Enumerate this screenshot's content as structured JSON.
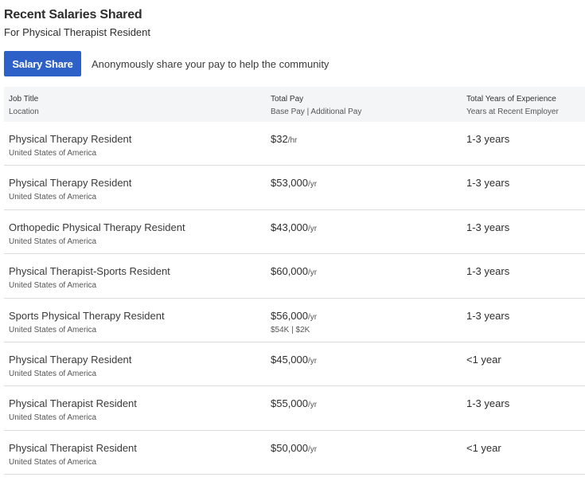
{
  "header": {
    "title": "Recent Salaries Shared",
    "subtitle": "For Physical Therapist Resident"
  },
  "share": {
    "button_label": "Salary Share",
    "description": "Anonymously share your pay to help the community"
  },
  "colors": {
    "accent": "#2e61c8",
    "header_bg": "#f4f5f7"
  },
  "table": {
    "headers": {
      "job_title": "Job Title",
      "location": "Location",
      "total_pay": "Total Pay",
      "pay_breakdown": "Base Pay | Additional Pay",
      "experience": "Total Years of Experience",
      "recent_employer": "Years at Recent Employer"
    },
    "rows": [
      {
        "title": "Physical Therapy Resident",
        "location": "United States of America",
        "pay": "$32",
        "unit": "/hr",
        "breakdown": "",
        "experience": "1-3 years"
      },
      {
        "title": "Physical Therapy Resident",
        "location": "United States of America",
        "pay": "$53,000",
        "unit": "/yr",
        "breakdown": "",
        "experience": "1-3 years"
      },
      {
        "title": "Orthopedic Physical Therapy Resident",
        "location": "United States of America",
        "pay": "$43,000",
        "unit": "/yr",
        "breakdown": "",
        "experience": "1-3 years"
      },
      {
        "title": "Physical Therapist-Sports Resident",
        "location": "United States of America",
        "pay": "$60,000",
        "unit": "/yr",
        "breakdown": "",
        "experience": "1-3 years"
      },
      {
        "title": "Sports Physical Therapy Resident",
        "location": "United States of America",
        "pay": "$56,000",
        "unit": "/yr",
        "breakdown": "$54K | $2K",
        "experience": "1-3 years"
      },
      {
        "title": "Physical Therapy Resident",
        "location": "United States of America",
        "pay": "$45,000",
        "unit": "/yr",
        "breakdown": "",
        "experience": "<1 year"
      },
      {
        "title": "Physical Therapist Resident",
        "location": "United States of America",
        "pay": "$55,000",
        "unit": "/yr",
        "breakdown": "",
        "experience": "1-3 years"
      },
      {
        "title": "Physical Therapist Resident",
        "location": "United States of America",
        "pay": "$50,000",
        "unit": "/yr",
        "breakdown": "",
        "experience": "<1 year"
      }
    ]
  }
}
